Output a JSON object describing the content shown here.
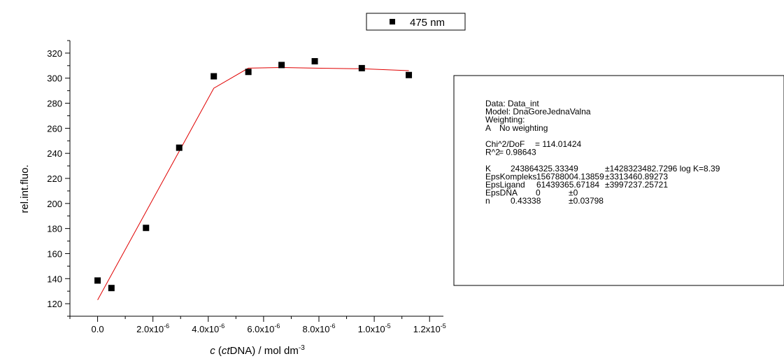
{
  "chart_data": {
    "type": "scatter",
    "xlabel": {
      "italic": "c",
      "open": " (",
      "italic2": "ct",
      "rest": "DNA) / mol dm",
      "sup": "-3"
    },
    "ylabel": "rel.int.fluo.",
    "xlim": [
      -1e-06,
      1.25e-05
    ],
    "ylim": [
      110,
      330
    ],
    "x_ticks": [
      {
        "value": 0,
        "base": "0.0",
        "exp": ""
      },
      {
        "value": 2e-06,
        "base": "2.0x10",
        "exp": "-6"
      },
      {
        "value": 4e-06,
        "base": "4.0x10",
        "exp": "-6"
      },
      {
        "value": 6e-06,
        "base": "6.0x10",
        "exp": "-6"
      },
      {
        "value": 8e-06,
        "base": "8.0x10",
        "exp": "-6"
      },
      {
        "value": 1e-05,
        "base": "1.0x10",
        "exp": "-5"
      },
      {
        "value": 1.2e-05,
        "base": "1.2x10",
        "exp": "-5"
      }
    ],
    "y_ticks": [
      120,
      140,
      160,
      180,
      200,
      220,
      240,
      260,
      280,
      300,
      320
    ],
    "series": [
      {
        "name": "475 nm",
        "color": "#000000",
        "marker": "square",
        "x": [
          0,
          5e-07,
          1.75e-06,
          2.95e-06,
          4.2e-06,
          5.45e-06,
          6.65e-06,
          7.85e-06,
          9.55e-06,
          1.125e-05
        ],
        "y": [
          138.5,
          132.5,
          180.5,
          244.5,
          301.5,
          305,
          310.5,
          313.5,
          308,
          302.5
        ]
      },
      {
        "name": "",
        "color": "#e00000",
        "marker": "line",
        "x": [
          0,
          4.2e-06,
          5.45e-06,
          6.65e-06,
          7.85e-06,
          9.55e-06,
          1.125e-05
        ],
        "y": [
          123,
          292,
          308,
          308.5,
          308,
          307.5,
          306
        ]
      }
    ],
    "legend": {
      "position": "top",
      "label": "475 nm"
    },
    "grid": false
  },
  "fit_report": {
    "lines": [
      [
        "Data: Data_int"
      ],
      [
        "Model: DnaGoreJednaValna"
      ],
      [
        "Weighting:"
      ],
      [
        "A",
        "No weighting"
      ],
      [
        ""
      ],
      [
        "Chi^2/DoF",
        "= 114.01424"
      ],
      [
        "R^2",
        "=  0.98643"
      ],
      [
        ""
      ],
      [
        "K",
        "243864325.33349",
        "±1428323482.7296 log K=8.39"
      ],
      [
        "EpsKompleks",
        "156788004.13859",
        "±3313460.89273"
      ],
      [
        "EpsLigand",
        "61439365.67184",
        "±3997237.25721"
      ],
      [
        "EpsDNA",
        "0",
        "±0"
      ],
      [
        "n",
        "0.43338",
        "±0.03798"
      ]
    ]
  }
}
